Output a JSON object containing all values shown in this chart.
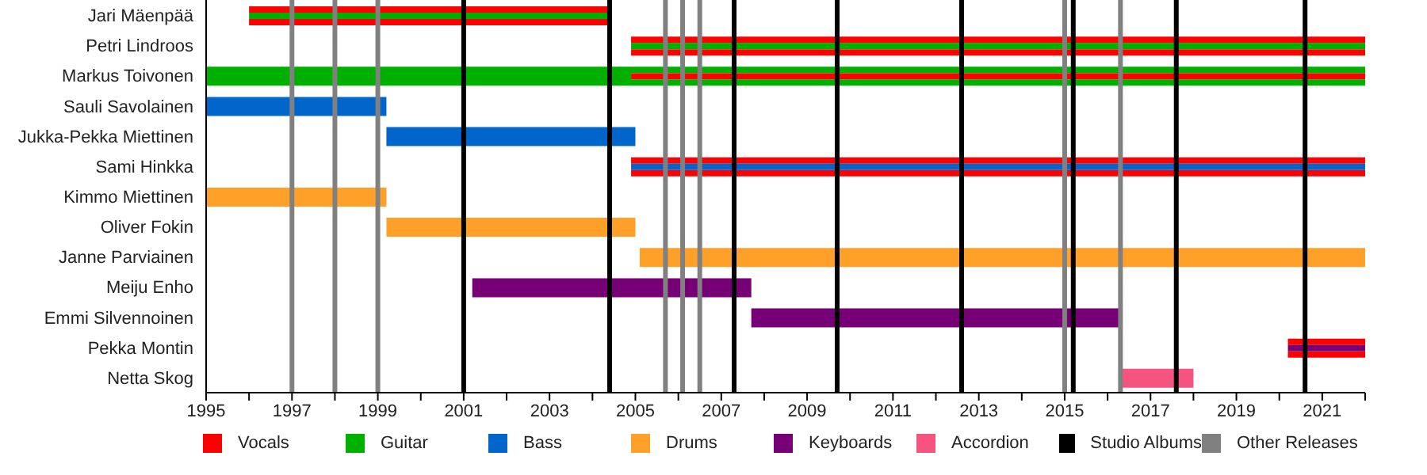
{
  "chart_data": {
    "type": "bar",
    "orientation": "horizontal",
    "categories": [
      "Jari Mäenpää",
      "Petri Lindroos",
      "Markus Toivonen",
      "Sauli Savolainen",
      "Jukka-Pekka Miettinen",
      "Sami Hinkka",
      "Kimmo Miettinen",
      "Oliver Fokin",
      "Janne Parviainen",
      "Meiju Enho",
      "Emmi Silvennoinen",
      "Pekka Montin",
      "Netta Skog"
    ],
    "series": [
      {
        "name": "Vocals",
        "color": "#ff0000",
        "base": [
          1996,
          2004.9,
          2004.9,
          null,
          null,
          2004.9,
          null,
          null,
          null,
          null,
          null,
          2020.2,
          null
        ],
        "values": [
          8.4,
          17.1,
          17.1,
          null,
          null,
          17.1,
          null,
          null,
          null,
          null,
          null,
          1.8,
          null
        ]
      },
      {
        "name": "Guitar",
        "color": "#00b000",
        "base": [
          1996,
          2004.9,
          1995,
          null,
          null,
          null,
          null,
          null,
          null,
          null,
          null,
          null,
          null
        ],
        "values": [
          8.4,
          17.1,
          27,
          null,
          null,
          null,
          null,
          null,
          null,
          null,
          null,
          null,
          null
        ]
      },
      {
        "name": "Bass",
        "color": "#0066cc",
        "base": [
          null,
          null,
          null,
          1995,
          1999.2,
          2004.9,
          null,
          null,
          null,
          null,
          null,
          null,
          null
        ],
        "values": [
          null,
          null,
          null,
          4.2,
          5.8,
          17.1,
          null,
          null,
          null,
          null,
          null,
          null,
          null
        ]
      },
      {
        "name": "Drums",
        "color": "#ffa028",
        "base": [
          null,
          null,
          null,
          null,
          null,
          null,
          1995,
          1999.2,
          2005.1,
          null,
          null,
          null,
          null
        ],
        "values": [
          null,
          null,
          null,
          null,
          null,
          null,
          4.2,
          5.8,
          16.9,
          null,
          null,
          null,
          null
        ]
      },
      {
        "name": "Keyboards",
        "color": "#770077",
        "base": [
          null,
          null,
          null,
          null,
          null,
          null,
          null,
          null,
          null,
          2001.2,
          2007.7,
          2020.2,
          null
        ],
        "values": [
          null,
          null,
          null,
          null,
          null,
          null,
          null,
          null,
          null,
          6.5,
          8.6,
          1.8,
          null
        ]
      },
      {
        "name": "Accordion",
        "color": "#f55380",
        "base": [
          null,
          null,
          null,
          null,
          null,
          null,
          null,
          null,
          null,
          null,
          null,
          null,
          2016.3
        ],
        "values": [
          null,
          null,
          null,
          null,
          null,
          null,
          null,
          null,
          null,
          null,
          null,
          null,
          1.7
        ]
      }
    ],
    "xlim": [
      1995,
      2022
    ],
    "xticks": [
      1995,
      {
        "value": 1996,
        "label": null
      },
      1997,
      {
        "value": 1998,
        "label": null
      },
      1999,
      {
        "value": 2000,
        "label": null
      },
      2001,
      {
        "value": 2002,
        "label": null
      },
      2003,
      {
        "value": 2004,
        "label": null
      },
      2005,
      {
        "value": 2006,
        "label": null
      },
      2007,
      {
        "value": 2008,
        "label": null
      },
      2009,
      {
        "value": 2010,
        "label": null
      },
      2011,
      {
        "value": 2012,
        "label": null
      },
      2013,
      {
        "value": 2014,
        "label": null
      },
      2015,
      {
        "value": 2016,
        "label": null
      },
      2017,
      {
        "value": 2018,
        "label": null
      },
      2019,
      {
        "value": 2020,
        "label": null
      },
      2021,
      {
        "value": 2022,
        "label": null
      }
    ],
    "ref_lines": [
      {
        "axis": "x",
        "value": 2001.0,
        "label": "Studio Albums",
        "color": "#000000"
      },
      {
        "axis": "x",
        "value": 2004.4,
        "color": "#000000"
      },
      {
        "axis": "x",
        "value": 2007.3,
        "color": "#000000"
      },
      {
        "axis": "x",
        "value": 2009.7,
        "color": "#000000"
      },
      {
        "axis": "x",
        "value": 2012.6,
        "color": "#000000"
      },
      {
        "axis": "x",
        "value": 2015.2,
        "color": "#000000"
      },
      {
        "axis": "x",
        "value": 2017.6,
        "color": "#000000"
      },
      {
        "axis": "x",
        "value": 2020.6,
        "color": "#000000"
      },
      {
        "axis": "x",
        "value": 1997.0,
        "label": "Other Releases",
        "color": "#808080"
      },
      {
        "axis": "x",
        "value": 1998.0,
        "color": "#808080"
      },
      {
        "axis": "x",
        "value": 1999.0,
        "color": "#808080"
      },
      {
        "axis": "x",
        "value": 2005.7,
        "color": "#808080"
      },
      {
        "axis": "x",
        "value": 2006.1,
        "color": "#808080"
      },
      {
        "axis": "x",
        "value": 2006.5,
        "color": "#808080"
      },
      {
        "axis": "x",
        "value": 2015.0,
        "color": "#808080"
      },
      {
        "axis": "x",
        "value": 2016.3,
        "color": "#808080"
      }
    ],
    "grid": false,
    "legend": "bottom"
  }
}
